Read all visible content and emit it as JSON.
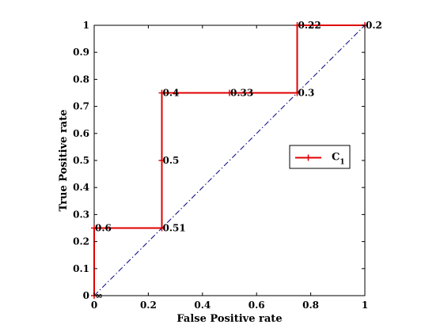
{
  "chart_data": {
    "type": "line",
    "xlabel": "False Positive rate",
    "ylabel": "True Positive rate",
    "xlim": [
      0,
      1
    ],
    "ylim": [
      0,
      1
    ],
    "xticks": [
      "0",
      "0.2",
      "0.4",
      "0.6",
      "0.8",
      "1"
    ],
    "yticks": [
      "0",
      "0.1",
      "0.2",
      "0.3",
      "0.4",
      "0.5",
      "0.6",
      "0.7",
      "0.8",
      "0.9",
      "1"
    ],
    "grid": false,
    "legend_position": "right",
    "series": [
      {
        "name": "C",
        "name_subscript": "1",
        "color": "#e00000",
        "marker": "plus",
        "x": [
          0,
          0,
          0.25,
          0.25,
          0.25,
          0.5,
          0.75,
          0.75,
          1
        ],
        "y": [
          0,
          0.25,
          0.25,
          0.5,
          0.75,
          0.75,
          0.75,
          1,
          1
        ],
        "point_labels": [
          "∞",
          "0.6",
          "0.51",
          "0.5",
          "0.4",
          "0.33",
          "0.3",
          "0.22",
          "0.2"
        ]
      }
    ],
    "reference_line": {
      "x": [
        0,
        1
      ],
      "y": [
        0,
        1
      ],
      "style": "dash-dot",
      "color": "#00007f"
    }
  }
}
